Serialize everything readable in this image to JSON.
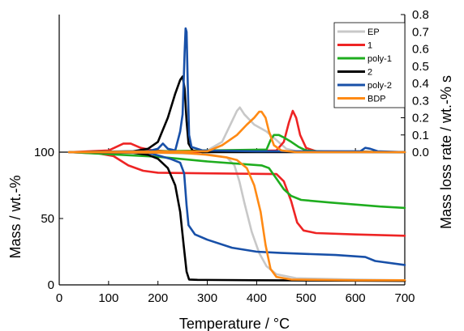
{
  "chart_data": {
    "type": "line",
    "x": {
      "label": "Temperature /  °C",
      "range": [
        0,
        700
      ],
      "ticks": [
        0,
        100,
        200,
        300,
        400,
        500,
        600,
        700
      ]
    },
    "panels": {
      "rate": {
        "ylabel": "Mass loss rate /  wt.-% s",
        "ylim": [
          0,
          0.8
        ],
        "ticks": [
          0.0,
          0.1,
          0.2,
          0.3,
          0.4,
          0.5,
          0.6,
          0.7,
          0.8
        ],
        "tick_labels": [
          "0.0",
          "0.1",
          "0.2",
          "0.3",
          "0.4",
          "0.5",
          "0.6",
          "0.7",
          "0.8"
        ]
      },
      "mass": {
        "ylabel": "Mass /  wt.-%",
        "ylim": [
          0,
          100
        ],
        "ticks": [
          0,
          50,
          100
        ],
        "tick_labels": [
          "0",
          "50",
          "100"
        ]
      }
    },
    "legend": {
      "position": "top-right"
    },
    "series": [
      {
        "name": "EP",
        "color": "#c8c8c8",
        "rate": [
          [
            20,
            0
          ],
          [
            250,
            0.002
          ],
          [
            300,
            0.01
          ],
          [
            330,
            0.06
          ],
          [
            350,
            0.18
          ],
          [
            360,
            0.24
          ],
          [
            366,
            0.26
          ],
          [
            375,
            0.22
          ],
          [
            395,
            0.16
          ],
          [
            420,
            0.12
          ],
          [
            440,
            0.07
          ],
          [
            460,
            0.02
          ],
          [
            480,
            0.005
          ],
          [
            700,
            0
          ]
        ],
        "mass": [
          [
            20,
            100
          ],
          [
            200,
            99.5
          ],
          [
            300,
            98.5
          ],
          [
            340,
            96
          ],
          [
            355,
            90
          ],
          [
            365,
            78
          ],
          [
            375,
            62
          ],
          [
            390,
            40
          ],
          [
            405,
            24
          ],
          [
            420,
            14
          ],
          [
            440,
            8
          ],
          [
            480,
            5
          ],
          [
            600,
            4
          ],
          [
            700,
            3.5
          ]
        ]
      },
      {
        "name": "1",
        "color": "#ee2424",
        "rate": [
          [
            20,
            0
          ],
          [
            100,
            0.01
          ],
          [
            130,
            0.05
          ],
          [
            145,
            0.05
          ],
          [
            165,
            0.025
          ],
          [
            190,
            0.01
          ],
          [
            260,
            0
          ],
          [
            440,
            0.01
          ],
          [
            455,
            0.06
          ],
          [
            465,
            0.17
          ],
          [
            473,
            0.24
          ],
          [
            480,
            0.2
          ],
          [
            488,
            0.1
          ],
          [
            500,
            0.025
          ],
          [
            520,
            0.005
          ],
          [
            700,
            0
          ]
        ],
        "mass": [
          [
            20,
            100
          ],
          [
            80,
            99
          ],
          [
            110,
            97
          ],
          [
            140,
            90
          ],
          [
            170,
            86
          ],
          [
            200,
            84.5
          ],
          [
            300,
            84
          ],
          [
            440,
            83.5
          ],
          [
            455,
            78
          ],
          [
            470,
            63
          ],
          [
            482,
            47
          ],
          [
            495,
            41
          ],
          [
            520,
            39
          ],
          [
            600,
            38
          ],
          [
            700,
            37
          ]
        ]
      },
      {
        "name": "poly-1",
        "color": "#1fad1f",
        "rate": [
          [
            20,
            0
          ],
          [
            200,
            0.005
          ],
          [
            300,
            0.01
          ],
          [
            420,
            0.015
          ],
          [
            428,
            0.07
          ],
          [
            435,
            0.1
          ],
          [
            445,
            0.1
          ],
          [
            455,
            0.085
          ],
          [
            470,
            0.06
          ],
          [
            485,
            0.03
          ],
          [
            500,
            0.01
          ],
          [
            540,
            0.003
          ],
          [
            700,
            0
          ]
        ],
        "mass": [
          [
            20,
            100
          ],
          [
            200,
            96.5
          ],
          [
            300,
            93
          ],
          [
            410,
            90
          ],
          [
            425,
            88
          ],
          [
            440,
            80
          ],
          [
            455,
            72
          ],
          [
            470,
            67
          ],
          [
            490,
            64
          ],
          [
            550,
            62
          ],
          [
            650,
            59
          ],
          [
            700,
            58
          ]
        ]
      },
      {
        "name": "2",
        "color": "#000000",
        "rate": [
          [
            20,
            0
          ],
          [
            150,
            0.005
          ],
          [
            180,
            0.02
          ],
          [
            200,
            0.06
          ],
          [
            220,
            0.2
          ],
          [
            235,
            0.34
          ],
          [
            245,
            0.42
          ],
          [
            250,
            0.44
          ],
          [
            254,
            0.37
          ],
          [
            258,
            0.18
          ],
          [
            262,
            0.05
          ],
          [
            270,
            0.01
          ],
          [
            290,
            0
          ],
          [
            700,
            0
          ]
        ],
        "mass": [
          [
            20,
            100
          ],
          [
            150,
            99.5
          ],
          [
            180,
            98
          ],
          [
            200,
            95
          ],
          [
            220,
            88
          ],
          [
            235,
            75
          ],
          [
            245,
            55
          ],
          [
            252,
            30
          ],
          [
            258,
            10
          ],
          [
            263,
            4
          ],
          [
            280,
            3.8
          ],
          [
            400,
            3.5
          ],
          [
            700,
            3
          ]
        ]
      },
      {
        "name": "poly-2",
        "color": "#1850a8",
        "rate": [
          [
            20,
            0
          ],
          [
            180,
            0.005
          ],
          [
            200,
            0.02
          ],
          [
            210,
            0.05
          ],
          [
            220,
            0.02
          ],
          [
            235,
            0.01
          ],
          [
            245,
            0.12
          ],
          [
            250,
            0.22
          ],
          [
            254,
            0.58
          ],
          [
            256,
            0.72
          ],
          [
            258,
            0.7
          ],
          [
            260,
            0.45
          ],
          [
            263,
            0.1
          ],
          [
            268,
            0.03
          ],
          [
            290,
            0.01
          ],
          [
            400,
            0.005
          ],
          [
            610,
            0.005
          ],
          [
            620,
            0.025
          ],
          [
            630,
            0.02
          ],
          [
            645,
            0.005
          ],
          [
            700,
            0
          ]
        ],
        "mass": [
          [
            20,
            100
          ],
          [
            180,
            99.5
          ],
          [
            205,
            97
          ],
          [
            225,
            95
          ],
          [
            245,
            92
          ],
          [
            253,
            84
          ],
          [
            258,
            60
          ],
          [
            262,
            45
          ],
          [
            275,
            38
          ],
          [
            300,
            34
          ],
          [
            350,
            28
          ],
          [
            400,
            25
          ],
          [
            450,
            24
          ],
          [
            560,
            22.5
          ],
          [
            620,
            21
          ],
          [
            640,
            18
          ],
          [
            700,
            15
          ]
        ]
      },
      {
        "name": "BDP",
        "color": "#ff8a14",
        "rate": [
          [
            20,
            0
          ],
          [
            300,
            0.005
          ],
          [
            330,
            0.04
          ],
          [
            360,
            0.1
          ],
          [
            380,
            0.16
          ],
          [
            395,
            0.2
          ],
          [
            405,
            0.235
          ],
          [
            410,
            0.235
          ],
          [
            418,
            0.2
          ],
          [
            425,
            0.12
          ],
          [
            435,
            0.04
          ],
          [
            450,
            0.01
          ],
          [
            480,
            0
          ],
          [
            700,
            0
          ]
        ],
        "mass": [
          [
            20,
            100
          ],
          [
            250,
            99.5
          ],
          [
            300,
            98
          ],
          [
            340,
            96
          ],
          [
            360,
            94
          ],
          [
            380,
            88
          ],
          [
            395,
            75
          ],
          [
            408,
            55
          ],
          [
            418,
            30
          ],
          [
            428,
            12
          ],
          [
            440,
            6
          ],
          [
            470,
            4
          ],
          [
            600,
            3.5
          ],
          [
            700,
            3.5
          ]
        ]
      }
    ]
  }
}
